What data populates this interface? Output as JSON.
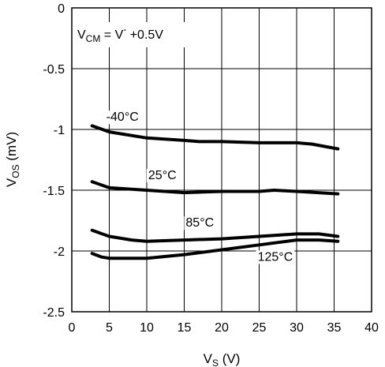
{
  "chart_data": {
    "type": "line",
    "title": "",
    "annotation": {
      "base": "V",
      "sub": "CM",
      "middle": " = V",
      "sup": "-",
      "tail": " +0.5V"
    },
    "xlabel": {
      "base": "V",
      "sub": "S",
      "unit": " (V)"
    },
    "ylabel": {
      "base": "V",
      "sub": "OS",
      "unit": " (mV)"
    },
    "xlim": [
      0,
      40
    ],
    "ylim": [
      -2.5,
      0
    ],
    "xticks": [
      0,
      5,
      10,
      15,
      20,
      25,
      30,
      35,
      40
    ],
    "yticks": [
      0,
      -0.5,
      -1,
      -1.5,
      -2,
      -2.5
    ],
    "xtick_labels": [
      "0",
      "5",
      "10",
      "15",
      "20",
      "25",
      "30",
      "35",
      "40"
    ],
    "ytick_labels": [
      "0",
      "-0.5",
      "-1",
      "-1.5",
      "-2",
      "-2.5"
    ],
    "grid": true,
    "series": [
      {
        "name": "-40°C",
        "points": [
          [
            2.7,
            -0.97
          ],
          [
            5,
            -1.02
          ],
          [
            10,
            -1.07
          ],
          [
            15,
            -1.09
          ],
          [
            17,
            -1.1
          ],
          [
            20,
            -1.1
          ],
          [
            25,
            -1.11
          ],
          [
            30,
            -1.11
          ],
          [
            32,
            -1.12
          ],
          [
            35.5,
            -1.16
          ]
        ]
      },
      {
        "name": "25°C",
        "points": [
          [
            2.7,
            -1.43
          ],
          [
            5,
            -1.48
          ],
          [
            10,
            -1.5
          ],
          [
            15,
            -1.52
          ],
          [
            20,
            -1.51
          ],
          [
            25,
            -1.51
          ],
          [
            27,
            -1.5
          ],
          [
            30,
            -1.51
          ],
          [
            35.5,
            -1.53
          ]
        ]
      },
      {
        "name": "85°C",
        "points": [
          [
            2.7,
            -1.83
          ],
          [
            5,
            -1.88
          ],
          [
            8,
            -1.91
          ],
          [
            10,
            -1.92
          ],
          [
            15,
            -1.91
          ],
          [
            20,
            -1.9
          ],
          [
            25,
            -1.88
          ],
          [
            30,
            -1.86
          ],
          [
            33,
            -1.86
          ],
          [
            35.5,
            -1.88
          ]
        ]
      },
      {
        "name": "125°C",
        "points": [
          [
            2.7,
            -2.02
          ],
          [
            4,
            -2.05
          ],
          [
            5,
            -2.06
          ],
          [
            7,
            -2.06
          ],
          [
            10,
            -2.06
          ],
          [
            15,
            -2.03
          ],
          [
            20,
            -1.99
          ],
          [
            25,
            -1.95
          ],
          [
            30,
            -1.91
          ],
          [
            33,
            -1.91
          ],
          [
            35.5,
            -1.92
          ]
        ]
      }
    ],
    "series_label_positions": [
      {
        "x": 4.6,
        "y": -0.93
      },
      {
        "x": 10.2,
        "y": -1.41
      },
      {
        "x": 15.2,
        "y": -1.8
      },
      {
        "x": 24.8,
        "y": -2.08
      }
    ]
  }
}
